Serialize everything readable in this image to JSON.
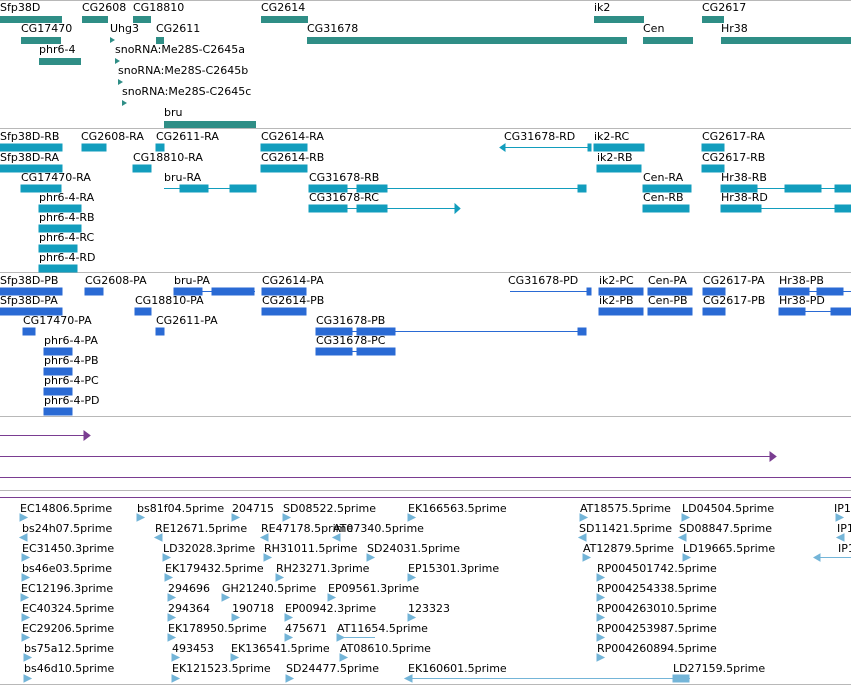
{
  "genes": [
    {
      "label": "Sfp38D"
    },
    {
      "label": "CG2608"
    },
    {
      "label": "CG18810"
    },
    {
      "label": "CG2614"
    },
    {
      "label": "ik2"
    },
    {
      "label": "CG2617"
    },
    {
      "label": "CG17470"
    },
    {
      "label": "Uhg3"
    },
    {
      "label": "CG2611"
    },
    {
      "label": "CG31678"
    },
    {
      "label": "Cen"
    },
    {
      "label": "Hr38"
    },
    {
      "label": "phr6-4"
    },
    {
      "label": "snoRNA:Me28S-C2645a"
    },
    {
      "label": "snoRNA:Me28S-C2645b"
    },
    {
      "label": "snoRNA:Me28S-C2645c"
    },
    {
      "label": "bru"
    }
  ],
  "transcripts": [
    "Sfp38D-RB",
    "CG2608-RA",
    "CG2611-RA",
    "CG2614-RA",
    "CG31678-RD",
    "ik2-RC",
    "CG2617-RA",
    "Sfp38D-RA",
    "CG18810-RA",
    "CG2614-RB",
    "ik2-RB",
    "CG2617-RB",
    "CG17470-RA",
    "bru-RA",
    "CG31678-RB",
    "Cen-RA",
    "Hr38-RB",
    "phr6-4-RA",
    "CG31678-RC",
    "Cen-RB",
    "Hr38-RD",
    "phr6-4-RB",
    "phr6-4-RC",
    "phr6-4-RD"
  ],
  "proteins": [
    "Sfp38D-PB",
    "CG2608-PA",
    "bru-PA",
    "CG2614-PA",
    "CG31678-PD",
    "ik2-PC",
    "Cen-PA",
    "CG2617-PA",
    "Hr38-PB",
    "Sfp38D-PA",
    "CG18810-PA",
    "CG2614-PB",
    "ik2-PB",
    "Cen-PB",
    "CG2617-PB",
    "Hr38-PD",
    "CG17470-PA",
    "CG2611-PA",
    "CG31678-PB",
    "CG31678-PC",
    "phr6-4-PA",
    "phr6-4-PB",
    "phr6-4-PC",
    "phr6-4-PD"
  ],
  "ests": [
    "EC14806.5prime",
    "bs81f04.5prime",
    "204715",
    "SD08522.5prime",
    "EK166563.5prime",
    "AT18575.5prime",
    "LD04504.5prime",
    "IP1",
    "bs24h07.5prime",
    "RE12671.5prime",
    "RE47178.5prime",
    "AT07340.5prime",
    "SD11421.5prime",
    "SD08847.5prime",
    "IP1",
    "EC31450.3prime",
    "LD32028.3prime",
    "RH31011.5prime",
    "SD24031.5prime",
    "AT12879.5prime",
    "LD19665.5prime",
    "IP1",
    "bs46e03.5prime",
    "EK179432.5prime",
    "RH23271.3prime",
    "EP15301.3prime",
    "RP004501742.5prime",
    "EC12196.3prime",
    "294696",
    "GH21240.5prime",
    "EP09561.3prime",
    "RP004254338.5prime",
    "EC40324.5prime",
    "294364",
    "190718",
    "EP00942.3prime",
    "123323",
    "RP004263010.5prime",
    "EC29206.5prime",
    "EK178950.5prime",
    "475671",
    "AT11654.5prime",
    "RP004253987.5prime",
    "bs75a12.5prime",
    "493453",
    "EK136541.5prime",
    "AT08610.5prime",
    "RP004260894.5prime",
    "bs46d10.5prime",
    "EK121523.5prime",
    "SD24477.5prime",
    "EK160601.5prime",
    "LD27159.5prime"
  ],
  "colors": {
    "gene": "#2f8e86",
    "transcript": "#129dbd",
    "protein": "#2a6ad4",
    "est": "#74b5d8",
    "line": "#7a3d91",
    "separator": "#b8b8b8"
  }
}
